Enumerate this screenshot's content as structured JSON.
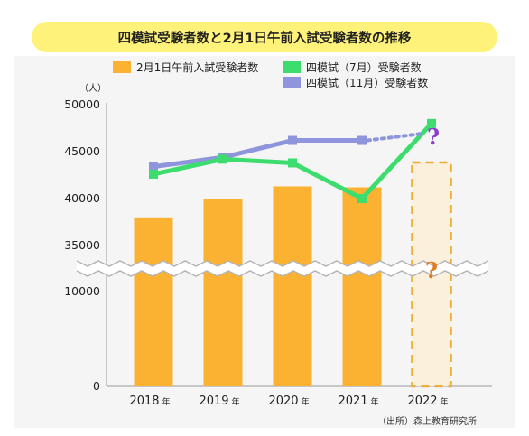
{
  "title": "四模試受験者数と2月1日午前入試受験者数の推移",
  "source": "（出所）森上教育研究所",
  "colors": {
    "bar": "#fbb131",
    "bar_placeholder_fill": "#fbf0dc",
    "bar_placeholder_stroke": "#eead3a",
    "line_7": "#3ddc6e",
    "line_11": "#8f95dc",
    "q_purple": "#8a3fc8",
    "q_orange": "#e37b22",
    "axis": "#999999"
  },
  "chart_data": {
    "type": "bar",
    "title": "四模試受験者数と2月1日午前入試受験者数の推移",
    "unit_label": "（人）",
    "categories": [
      "2018",
      "2019",
      "2020",
      "2021",
      "2022"
    ],
    "category_suffix": "年",
    "y_ticks_upper": [
      "50000",
      "45000",
      "40000",
      "35000"
    ],
    "y_ticks_lower": [
      "10000",
      "0"
    ],
    "y_range_upper": [
      35000,
      50000
    ],
    "y_range_lower": [
      0,
      10000
    ],
    "axis_break": true,
    "legend_placement": "top",
    "series": [
      {
        "name": "2月1日午前入試受験者数",
        "kind": "bar",
        "values": [
          38000,
          40000,
          41300,
          41200,
          null
        ]
      },
      {
        "name": "四模試（7月）受験者数",
        "kind": "line",
        "values": [
          42600,
          44200,
          43800,
          40000,
          48000
        ]
      },
      {
        "name": "四模試（11月）受験者数",
        "kind": "line",
        "values": [
          43400,
          44400,
          46200,
          46200,
          null
        ]
      }
    ],
    "projection": {
      "series": "四模試（11月）受験者数",
      "from_category": "2021",
      "to_category": "2022",
      "to_value": 46900,
      "marker": "?"
    },
    "unknown_bar": {
      "category": "2022",
      "marker": "?"
    }
  }
}
